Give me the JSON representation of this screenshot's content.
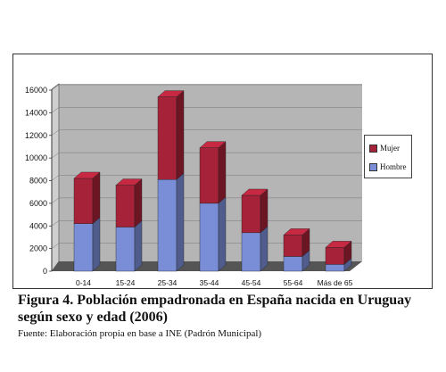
{
  "chart_data": {
    "type": "bar",
    "stacked": true,
    "categories": [
      "0-14",
      "15-24",
      "25-34",
      "35-44",
      "45-54",
      "55-64",
      "Más de 65"
    ],
    "series": [
      {
        "name": "Hombre",
        "values": [
          4200,
          3900,
          8100,
          6000,
          3400,
          1300,
          600
        ]
      },
      {
        "name": "Mujer",
        "values": [
          4000,
          3700,
          7300,
          4900,
          3300,
          1900,
          1500
        ]
      }
    ],
    "ylim": [
      0,
      16000
    ],
    "yticks": [
      0,
      2000,
      4000,
      6000,
      8000,
      10000,
      12000,
      14000,
      16000
    ],
    "grid": true,
    "legend_position": "right",
    "colors": {
      "Hombre": "#7a8ed8",
      "Mujer": "#a62238",
      "wall": "#b5b5b5",
      "floor": "#555555"
    }
  },
  "caption": {
    "title": "Figura 4. Población empadronada en España nacida en Uruguay según sexo y edad (2006)",
    "source": "Fuente: Elaboración propia en base a INE (Padrón Municipal)"
  }
}
